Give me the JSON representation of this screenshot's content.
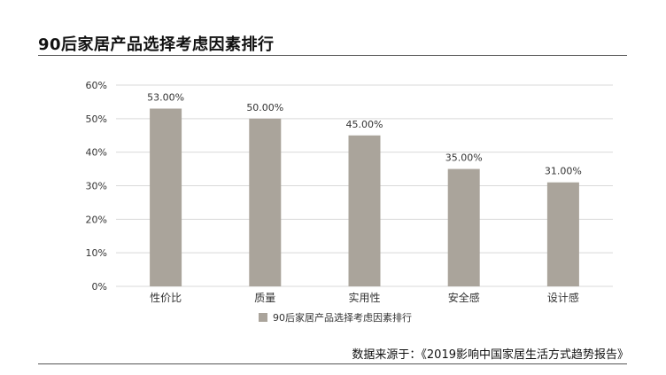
{
  "page": {
    "title": "90后家居产品选择考虑因素排行",
    "source": "数据来源于：《2019影响中国家居生活方式趋势报告》"
  },
  "colors": {
    "bar": "#aaa49b",
    "grid": "#d9d9d9",
    "axis_text": "#333333"
  },
  "chart_data": {
    "type": "bar",
    "categories": [
      "性价比",
      "质量",
      "实用性",
      "安全感",
      "设计感"
    ],
    "series": [
      {
        "name": "90后家居产品选择考虑因素排行",
        "values": [
          53,
          50,
          45,
          35,
          31
        ],
        "labels": [
          "53.00%",
          "50.00%",
          "45.00%",
          "35.00%",
          "31.00%"
        ]
      }
    ],
    "yticks": [
      "0%",
      "10%",
      "20%",
      "30%",
      "40%",
      "50%",
      "60%"
    ],
    "ylim": [
      0,
      60
    ],
    "grid": true,
    "legend": "bottom-center"
  }
}
